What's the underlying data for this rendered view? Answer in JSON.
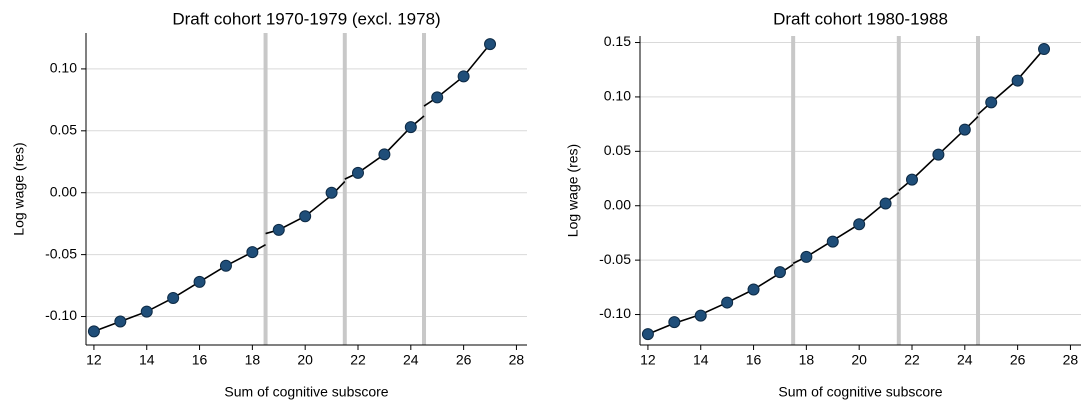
{
  "chart_data": [
    {
      "type": "scatter",
      "title": "Draft cohort 1970-1979 (excl. 1978)",
      "xlabel": "Sum of cognitive subscore",
      "ylabel": "Log wage (res)",
      "xlim": [
        11.7,
        28.4
      ],
      "ylim": [
        -0.123,
        0.129
      ],
      "xticks": [
        12,
        14,
        16,
        18,
        20,
        22,
        24,
        26,
        28
      ],
      "yticks": [
        {
          "value": -0.1,
          "label": "-0.10"
        },
        {
          "value": -0.05,
          "label": "-0.05"
        },
        {
          "value": 0,
          "label": "0.00"
        },
        {
          "value": 0.05,
          "label": "0.05"
        },
        {
          "value": 0.1,
          "label": "0.10"
        }
      ],
      "grid": true,
      "vlines": [
        18.5,
        21.5,
        24.5
      ],
      "vline_color": "#c8c8c8",
      "points": {
        "color": "#1f4e79",
        "x": [
          12,
          13,
          14,
          15,
          16,
          17,
          18,
          19,
          20,
          21,
          22,
          23,
          24,
          25,
          26,
          27
        ],
        "y": [
          -0.112,
          -0.104,
          -0.096,
          -0.085,
          -0.072,
          -0.059,
          -0.048,
          -0.03,
          -0.019,
          0.0,
          0.016,
          0.031,
          0.053,
          0.077,
          0.094,
          0.12
        ]
      },
      "fit": {
        "color": "#000000",
        "x": [
          12,
          13,
          14,
          15,
          16,
          17,
          18,
          18.5,
          18.5,
          18.5,
          19,
          20,
          21,
          21.5,
          21.5,
          21.5,
          22,
          23,
          24,
          24.5,
          24.5,
          24.5,
          25,
          26,
          27
        ],
        "y": [
          -0.112,
          -0.104,
          -0.096,
          -0.085,
          -0.072,
          -0.059,
          -0.048,
          -0.042,
          null,
          -0.033,
          -0.03,
          -0.019,
          -0.002,
          0.009,
          null,
          0.011,
          0.016,
          0.031,
          0.053,
          0.062,
          null,
          0.07,
          0.077,
          0.094,
          0.12
        ]
      }
    },
    {
      "type": "scatter",
      "title": "Draft cohort 1980-1988",
      "xlabel": "Sum of cognitive subscore",
      "ylabel": "Log wage (res)",
      "xlim": [
        11.7,
        28.4
      ],
      "ylim": [
        -0.128,
        0.156
      ],
      "xticks": [
        12,
        14,
        16,
        18,
        20,
        22,
        24,
        26,
        28
      ],
      "yticks": [
        {
          "value": -0.1,
          "label": "-0.10"
        },
        {
          "value": -0.05,
          "label": "-0.05"
        },
        {
          "value": 0,
          "label": "0.00"
        },
        {
          "value": 0.05,
          "label": "0.05"
        },
        {
          "value": 0.1,
          "label": "0.10"
        },
        {
          "value": 0.15,
          "label": "0.15"
        }
      ],
      "grid": true,
      "vlines": [
        17.5,
        21.5,
        24.5
      ],
      "vline_color": "#c8c8c8",
      "points": {
        "color": "#1f4e79",
        "x": [
          12,
          13,
          14,
          15,
          16,
          17,
          18,
          19,
          20,
          21,
          22,
          23,
          24,
          25,
          26,
          27
        ],
        "y": [
          -0.118,
          -0.107,
          -0.101,
          -0.089,
          -0.077,
          -0.061,
          -0.047,
          -0.033,
          -0.017,
          0.002,
          0.024,
          0.047,
          0.07,
          0.095,
          0.115,
          0.144
        ]
      },
      "fit": {
        "color": "#000000",
        "x": [
          12,
          13,
          14,
          15,
          16,
          17,
          17.5,
          17.5,
          17.5,
          18,
          19,
          20,
          21,
          21.5,
          21.5,
          21.5,
          22,
          23,
          24,
          24.5,
          24.5,
          24.5,
          25,
          26,
          27
        ],
        "y": [
          -0.118,
          -0.108,
          -0.1,
          -0.089,
          -0.077,
          -0.062,
          -0.054,
          null,
          -0.053,
          -0.047,
          -0.032,
          -0.017,
          0.003,
          0.012,
          null,
          0.014,
          0.024,
          0.047,
          0.07,
          0.082,
          null,
          0.084,
          0.095,
          0.116,
          0.144
        ]
      }
    }
  ]
}
